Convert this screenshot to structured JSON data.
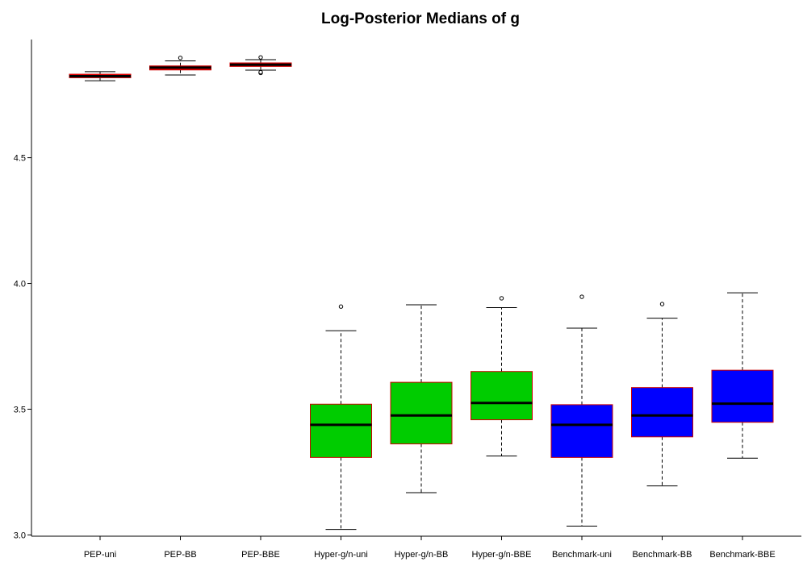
{
  "chart_data": {
    "type": "boxplot",
    "title": "Log-Posterior Medians of g",
    "xlabel": "",
    "ylabel": "",
    "ylim": [
      2.995,
      4.97
    ],
    "yticks": [
      3.0,
      3.5,
      4.0,
      4.5
    ],
    "ytick_labels": [
      "3.0",
      "3.5",
      "4.0",
      "4.5"
    ],
    "grid": false,
    "box_border_color": "#cc0000",
    "categories": [
      "PEP-uni",
      "PEP-BB",
      "PEP-BBE",
      "Hyper-g/n-uni",
      "Hyper-g/n-BB",
      "Hyper-g/n-BBE",
      "Benchmark-uni",
      "Benchmark-BB",
      "Benchmark-BBE"
    ],
    "boxes": [
      {
        "label": "PEP-uni",
        "color": "#ff0000",
        "whisker_low": 4.806,
        "q1": 4.818,
        "median": 4.824,
        "q3": 4.832,
        "whisker_high": 4.842,
        "outliers": []
      },
      {
        "label": "PEP-BB",
        "color": "#ff0000",
        "whisker_low": 4.829,
        "q1": 4.849,
        "median": 4.858,
        "q3": 4.865,
        "whisker_high": 4.885,
        "outliers": [
          4.897
        ]
      },
      {
        "label": "PEP-BBE",
        "color": "#ff0000",
        "whisker_low": 4.848,
        "q1": 4.863,
        "median": 4.87,
        "q3": 4.877,
        "whisker_high": 4.89,
        "outliers": [
          4.899,
          4.837,
          4.84
        ]
      },
      {
        "label": "Hyper-g/n-uni",
        "color": "#00cc00",
        "whisker_low": 3.022,
        "q1": 3.308,
        "median": 3.438,
        "q3": 3.52,
        "whisker_high": 3.812,
        "outliers": [
          3.908
        ]
      },
      {
        "label": "Hyper-g/n-BB",
        "color": "#00cc00",
        "whisker_low": 3.168,
        "q1": 3.362,
        "median": 3.475,
        "q3": 3.607,
        "whisker_high": 3.915,
        "outliers": []
      },
      {
        "label": "Hyper-g/n-BBE",
        "color": "#00cc00",
        "whisker_low": 3.314,
        "q1": 3.458,
        "median": 3.525,
        "q3": 3.65,
        "whisker_high": 3.904,
        "outliers": [
          3.941
        ]
      },
      {
        "label": "Benchmark-uni",
        "color": "#0000ff",
        "whisker_low": 3.035,
        "q1": 3.308,
        "median": 3.438,
        "q3": 3.518,
        "whisker_high": 3.822,
        "outliers": [
          3.947
        ]
      },
      {
        "label": "Benchmark-BB",
        "color": "#0000ff",
        "whisker_low": 3.195,
        "q1": 3.39,
        "median": 3.475,
        "q3": 3.586,
        "whisker_high": 3.862,
        "outliers": [
          3.918
        ]
      },
      {
        "label": "Benchmark-BBE",
        "color": "#0000ff",
        "whisker_low": 3.305,
        "q1": 3.448,
        "median": 3.522,
        "q3": 3.655,
        "whisker_high": 3.963,
        "outliers": []
      }
    ]
  }
}
